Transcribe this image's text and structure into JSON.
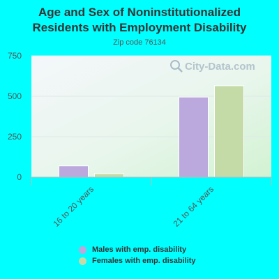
{
  "header": {
    "title_line1": "Age and Sex of Noninstitutionalized",
    "title_line2": "Residents with Employment Disability",
    "subtitle": "Zip code 76134"
  },
  "watermark": {
    "text": "City-Data.com",
    "icon": "magnifier-icon"
  },
  "colors": {
    "males": "#bba8dc",
    "females": "#c4dba8",
    "background": "#00ffff"
  },
  "chart_data": {
    "type": "bar",
    "categories": [
      "16 to 20 years",
      "21 to 64 years"
    ],
    "series": [
      {
        "name": "Males with emp. disability",
        "values": [
          70,
          495
        ]
      },
      {
        "name": "Females with emp. disability",
        "values": [
          22,
          565
        ]
      }
    ],
    "ylim": [
      0,
      750
    ],
    "yticks": [
      0,
      250,
      500,
      750
    ],
    "grid": true,
    "legend_position": "bottom"
  }
}
